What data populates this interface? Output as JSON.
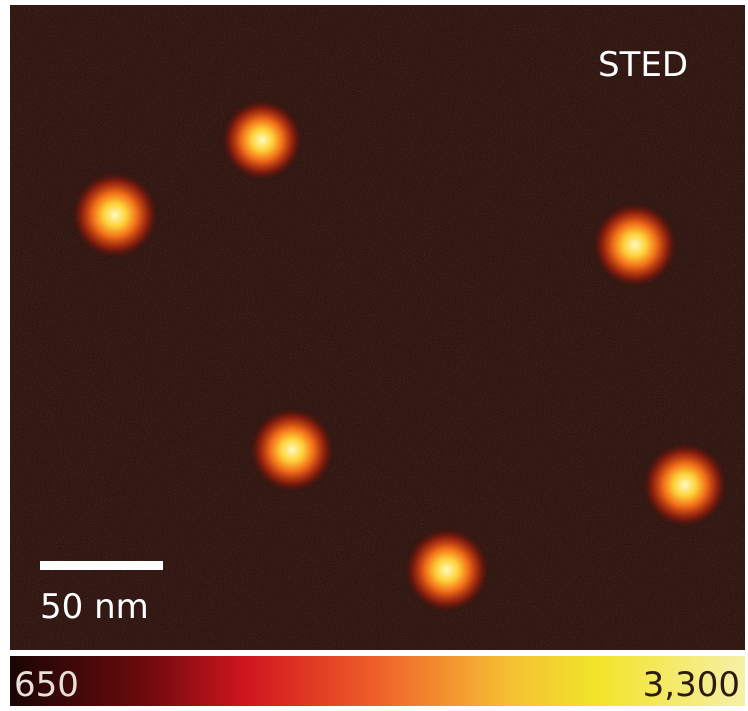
{
  "image": {
    "label": "STED",
    "scale_bar": "50 nm"
  },
  "colorbar": {
    "min_label": "650",
    "max_label": "3,300"
  }
}
